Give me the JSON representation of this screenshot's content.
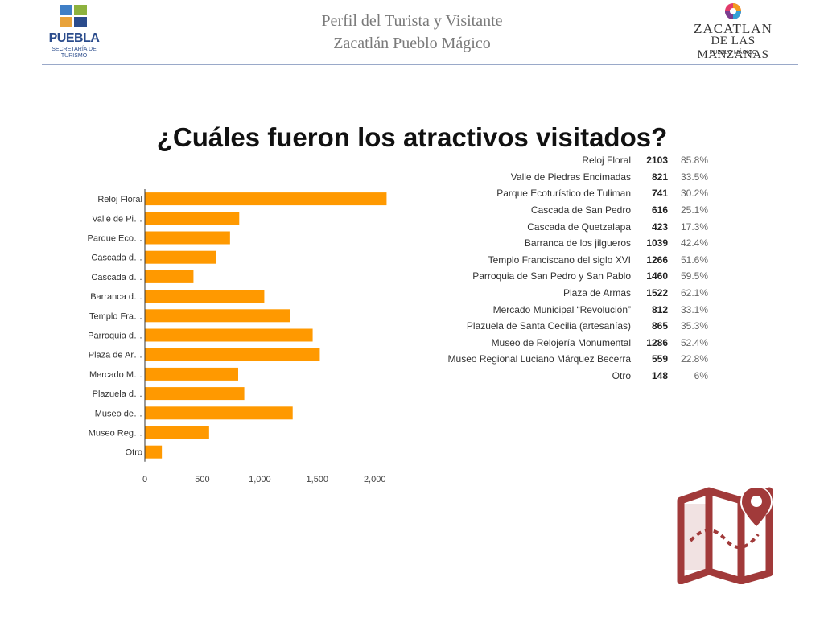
{
  "header": {
    "line1": "Perfil del Turista y Visitante",
    "line2": "Zacatlán Pueblo Mágico"
  },
  "logo_left": {
    "name": "PUEBLA",
    "sub1": "SECRETARÍA DE",
    "sub2": "TURISMO"
  },
  "logo_right": {
    "line1": "ZACATLAN",
    "line2": "DE LAS MANZANAS",
    "line3": "PUEBLO MÁGICO"
  },
  "question": "¿Cuáles fueron los atractivos visitados?",
  "colors": {
    "bar": "#ff9900",
    "header_rule": "#9aa9c9",
    "map_icon": "#a13a3a",
    "puebla_blue": "#2b4c8c"
  },
  "icons": [
    "map-pin-icon"
  ],
  "chart_data": {
    "type": "bar",
    "orientation": "horizontal",
    "categories": [
      "Reloj Floral",
      "Valle de Pi…",
      "Parque Eco…",
      "Cascada d…",
      "Cascada d…",
      "Barranca d…",
      "Templo Fra…",
      "Parroquia d…",
      "Plaza de Ar…",
      "Mercado M…",
      "Plazuela d…",
      "Museo de…",
      "Museo Reg…",
      "Otro"
    ],
    "values": [
      2103,
      821,
      741,
      616,
      423,
      1039,
      1266,
      1460,
      1522,
      812,
      865,
      1286,
      559,
      148
    ],
    "xticks": [
      "0",
      "500",
      "1,000",
      "1,500",
      "2,000"
    ],
    "xtick_values": [
      0,
      500,
      1000,
      1500,
      2000
    ],
    "xlim": [
      0,
      2100
    ],
    "grid": false,
    "legend": "none"
  },
  "table": {
    "rows": [
      {
        "label": "Reloj Floral",
        "count": "2103",
        "pct": "85.8%"
      },
      {
        "label": "Valle de Piedras Encimadas",
        "count": "821",
        "pct": "33.5%"
      },
      {
        "label": "Parque Ecoturístico de Tuliman",
        "count": "741",
        "pct": "30.2%"
      },
      {
        "label": "Cascada de San Pedro",
        "count": "616",
        "pct": "25.1%"
      },
      {
        "label": "Cascada de Quetzalapa",
        "count": "423",
        "pct": "17.3%"
      },
      {
        "label": "Barranca de los jilgueros",
        "count": "1039",
        "pct": "42.4%"
      },
      {
        "label": "Templo Franciscano del siglo XVI",
        "count": "1266",
        "pct": "51.6%"
      },
      {
        "label": "Parroquia de San Pedro y San Pablo",
        "count": "1460",
        "pct": "59.5%"
      },
      {
        "label": "Plaza de Armas",
        "count": "1522",
        "pct": "62.1%"
      },
      {
        "label": "Mercado Municipal “Revolución”",
        "count": "812",
        "pct": "33.1%"
      },
      {
        "label": "Plazuela de Santa Cecilia (artesanías)",
        "count": "865",
        "pct": "35.3%"
      },
      {
        "label": "Museo de Relojería Monumental",
        "count": "1286",
        "pct": "52.4%"
      },
      {
        "label": "Museo Regional Luciano Márquez Becerra",
        "count": "559",
        "pct": "22.8%"
      },
      {
        "label": "Otro",
        "count": "148",
        "pct": "6%"
      }
    ]
  }
}
